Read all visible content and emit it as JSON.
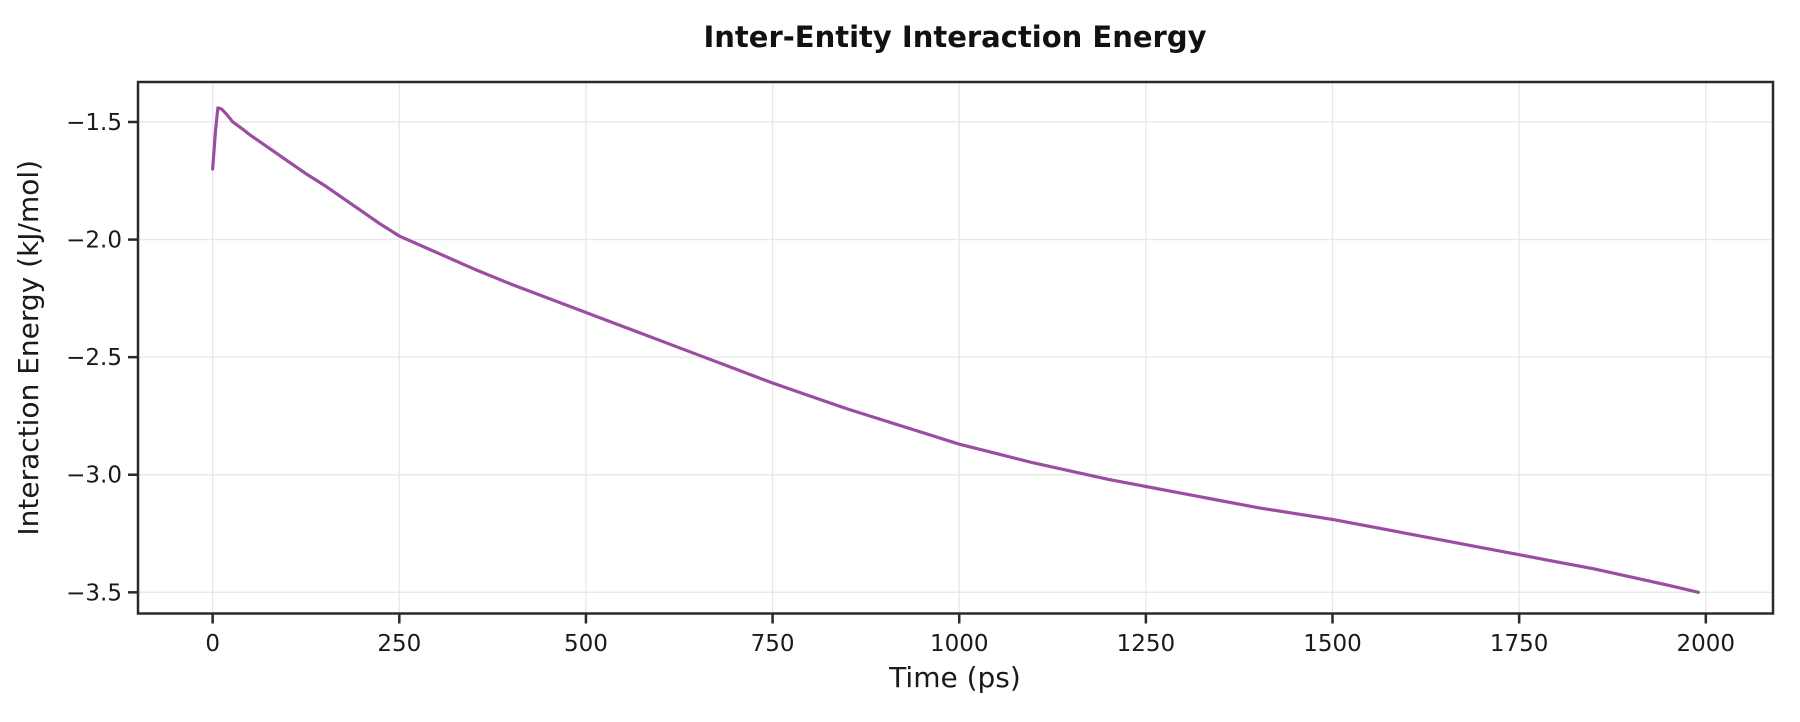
{
  "page": {
    "background": "#ffffff"
  },
  "chart_data": {
    "type": "line",
    "title": "Inter-Entity Interaction Energy",
    "xlabel": "Time (ps)",
    "ylabel": "Interaction Energy (kJ/mol)",
    "xlim": [
      -100,
      2090
    ],
    "ylim": [
      -3.59,
      -1.33
    ],
    "x_ticks": [
      0,
      250,
      500,
      750,
      1000,
      1250,
      1500,
      1750,
      2000
    ],
    "x_tick_labels": [
      "0",
      "250",
      "500",
      "750",
      "1000",
      "1250",
      "1500",
      "1750",
      "2000"
    ],
    "y_ticks": [
      -1.5,
      -2.0,
      -2.5,
      -3.0,
      -3.5
    ],
    "y_tick_labels": [
      "−1.5",
      "−2.0",
      "−2.5",
      "−3.0",
      "−3.5"
    ],
    "grid": true,
    "legend_position": "none",
    "colors": {
      "line": "#9b4da2",
      "spine": "#2a2a2a",
      "grid": "#e9e9e9",
      "text": "#1a1a1a",
      "background": "#ffffff"
    },
    "series": [
      {
        "name": "interaction-energy",
        "color": "#9b4da2",
        "x": [
          0,
          4,
          7,
          12,
          18,
          27,
          40,
          50,
          75,
          100,
          125,
          150,
          175,
          200,
          225,
          250,
          300,
          350,
          400,
          450,
          500,
          550,
          600,
          650,
          700,
          750,
          800,
          850,
          900,
          950,
          1000,
          1050,
          1100,
          1150,
          1200,
          1250,
          1300,
          1350,
          1400,
          1450,
          1500,
          1550,
          1600,
          1650,
          1700,
          1750,
          1800,
          1850,
          1900,
          1950,
          1990
        ],
        "y": [
          -1.7,
          -1.53,
          -1.44,
          -1.445,
          -1.465,
          -1.5,
          -1.53,
          -1.555,
          -1.61,
          -1.665,
          -1.72,
          -1.77,
          -1.825,
          -1.88,
          -1.935,
          -1.985,
          -2.055,
          -2.125,
          -2.19,
          -2.25,
          -2.31,
          -2.37,
          -2.43,
          -2.49,
          -2.55,
          -2.61,
          -2.665,
          -2.72,
          -2.77,
          -2.82,
          -2.87,
          -2.91,
          -2.95,
          -2.985,
          -3.02,
          -3.05,
          -3.08,
          -3.11,
          -3.14,
          -3.165,
          -3.19,
          -3.22,
          -3.25,
          -3.28,
          -3.31,
          -3.34,
          -3.37,
          -3.4,
          -3.435,
          -3.47,
          -3.5
        ]
      }
    ]
  }
}
